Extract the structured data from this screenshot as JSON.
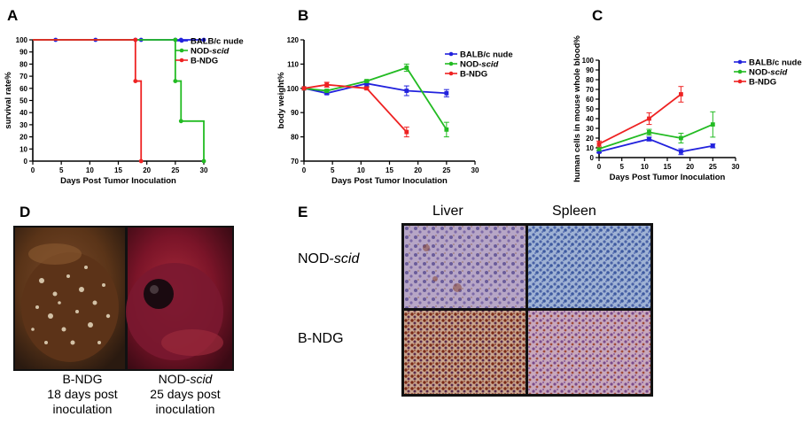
{
  "panel_labels": {
    "a": "A",
    "b": "B",
    "c": "C",
    "d": "D",
    "e": "E"
  },
  "chart_data": [
    {
      "id": "A",
      "type": "line",
      "style": "step",
      "title": "",
      "xlabel": "Days Post Tumor Inoculation",
      "ylabel": "survival rate%",
      "xlim": [
        0,
        30
      ],
      "ylim": [
        0,
        100
      ],
      "xticks": [
        0,
        5,
        10,
        15,
        20,
        25,
        30
      ],
      "yticks": [
        0,
        10,
        20,
        30,
        40,
        50,
        60,
        70,
        80,
        90,
        100
      ],
      "legend_position": "top-right",
      "series": [
        {
          "name": "BALB/c nude",
          "name_parts": [
            "BALB/c nude",
            ""
          ],
          "color": "#2222dd",
          "x": [
            0,
            4,
            11,
            18,
            19,
            25,
            26,
            30
          ],
          "y": [
            100,
            100,
            100,
            100,
            100,
            100,
            100,
            100
          ],
          "markers": [
            [
              4,
              100
            ],
            [
              11,
              100
            ],
            [
              18,
              100
            ],
            [
              19,
              100
            ],
            [
              25,
              100
            ],
            [
              26,
              100
            ],
            [
              30,
              100
            ]
          ]
        },
        {
          "name": "NOD-scid",
          "name_parts": [
            "NOD-",
            "scid"
          ],
          "color": "#22bb22",
          "x": [
            0,
            25,
            25,
            26,
            26,
            30,
            30
          ],
          "y": [
            100,
            100,
            66,
            66,
            33,
            33,
            0
          ],
          "markers": [
            [
              25,
              100
            ],
            [
              25,
              66
            ],
            [
              26,
              33
            ],
            [
              30,
              0
            ]
          ]
        },
        {
          "name": "B-NDG",
          "name_parts": [
            "B-NDG",
            ""
          ],
          "color": "#ee2222",
          "x": [
            0,
            18,
            18,
            19,
            19
          ],
          "y": [
            100,
            100,
            66,
            66,
            0
          ],
          "markers": [
            [
              18,
              100
            ],
            [
              18,
              66
            ],
            [
              19,
              0
            ]
          ]
        }
      ]
    },
    {
      "id": "B",
      "type": "line",
      "title": "",
      "xlabel": "Days Post Tumor Inoculation",
      "ylabel": "body weight%",
      "xlim": [
        0,
        30
      ],
      "ylim": [
        70,
        120
      ],
      "xticks": [
        0,
        5,
        10,
        15,
        20,
        25,
        30
      ],
      "yticks": [
        70,
        80,
        90,
        100,
        110,
        120
      ],
      "legend_position": "top-right",
      "series": [
        {
          "name": "BALB/c nude",
          "name_parts": [
            "BALB/c nude",
            ""
          ],
          "color": "#2222dd",
          "x": [
            0,
            4,
            11,
            18,
            25
          ],
          "y": [
            100,
            98,
            102,
            99,
            98
          ],
          "err": [
            0,
            0.5,
            1,
            2,
            1.5
          ]
        },
        {
          "name": "NOD-scid",
          "name_parts": [
            "NOD-",
            "scid"
          ],
          "color": "#22bb22",
          "x": [
            0,
            4,
            11,
            18,
            25
          ],
          "y": [
            100,
            99,
            103,
            108.5,
            83
          ],
          "err": [
            0,
            0.5,
            0.5,
            1.5,
            3
          ]
        },
        {
          "name": "B-NDG",
          "name_parts": [
            "B-NDG",
            ""
          ],
          "color": "#ee2222",
          "x": [
            0,
            4,
            11,
            18
          ],
          "y": [
            100,
            101.5,
            100,
            82
          ],
          "err": [
            0,
            1,
            0.5,
            2
          ]
        }
      ]
    },
    {
      "id": "C",
      "type": "line",
      "title": "",
      "xlabel": "Days Post Tumor Inoculation",
      "ylabel": "human cells in mouse whole blood%",
      "xlim": [
        0,
        30
      ],
      "ylim": [
        0,
        100
      ],
      "xticks": [
        0,
        5,
        10,
        15,
        20,
        25,
        30
      ],
      "yticks": [
        0,
        10,
        20,
        30,
        40,
        50,
        60,
        70,
        80,
        90,
        100
      ],
      "legend_position": "top-right",
      "series": [
        {
          "name": "BALB/c nude",
          "name_parts": [
            "BALB/c nude",
            ""
          ],
          "color": "#2222dd",
          "x": [
            0,
            11,
            18,
            25
          ],
          "y": [
            6,
            19,
            6,
            12
          ],
          "err": [
            1,
            2,
            3,
            2
          ]
        },
        {
          "name": "NOD-scid",
          "name_parts": [
            "NOD-",
            "scid"
          ],
          "color": "#22bb22",
          "x": [
            0,
            11,
            18,
            25
          ],
          "y": [
            9,
            26,
            20,
            34
          ],
          "err": [
            2,
            3,
            5,
            13
          ]
        },
        {
          "name": "B-NDG",
          "name_parts": [
            "B-NDG",
            ""
          ],
          "color": "#ee2222",
          "x": [
            0,
            11,
            18
          ],
          "y": [
            14,
            40,
            65
          ],
          "err": [
            3,
            6,
            8
          ]
        }
      ]
    }
  ],
  "panel_d": {
    "left_caption": [
      "B-NDG",
      "18 days post",
      "inoculation"
    ],
    "right_caption_line1_prefix": "NOD-",
    "right_caption_line1_italic": "scid",
    "right_caption": [
      "25 days post",
      "inoculation"
    ]
  },
  "panel_e": {
    "col_liver": "Liver",
    "col_spleen": "Spleen",
    "row_nodscid_prefix": "NOD-",
    "row_nodscid_italic": "scid",
    "row_bndg": "B-NDG"
  },
  "colors": {
    "blue": "#2222dd",
    "green": "#22bb22",
    "red": "#ee2222"
  }
}
